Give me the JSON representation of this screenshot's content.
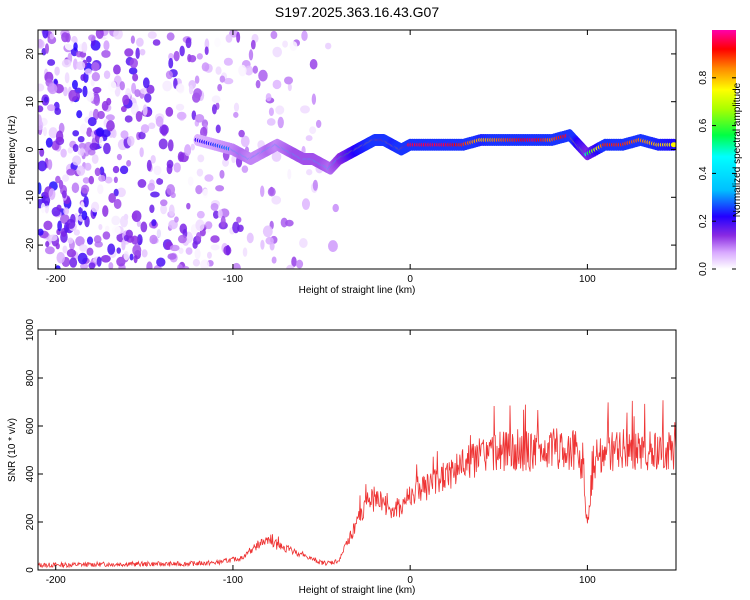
{
  "title": "S197.2025.363.16.43.G07",
  "chart_data": [
    {
      "type": "heatmap",
      "xlabel": "Height of straight line (km)",
      "ylabel": "Frequency (Hz)",
      "xlim": [
        -210,
        150
      ],
      "ylim": [
        -25,
        25
      ],
      "xticks": [
        -200,
        -100,
        0,
        100
      ],
      "yticks": [
        -20,
        -10,
        0,
        10,
        20
      ],
      "colorbar": {
        "label": "Normalized spectral amplitude",
        "range": [
          0,
          1
        ],
        "ticks": [
          0.0,
          0.2,
          0.4,
          0.6,
          0.8
        ]
      },
      "ridge": {
        "x": [
          -120,
          -110,
          -100,
          -95,
          -90,
          -85,
          -80,
          -75,
          -70,
          -65,
          -60,
          -55,
          -50,
          -45,
          -40,
          -35,
          -30,
          -25,
          -20,
          -15,
          -10,
          -5,
          0,
          10,
          20,
          30,
          40,
          50,
          60,
          70,
          80,
          90,
          95,
          100,
          110,
          120,
          130,
          140,
          150
        ],
        "freq": [
          2,
          1,
          0,
          -1,
          -2,
          -1,
          0,
          1,
          0,
          -1,
          -2,
          -2,
          -3,
          -4,
          -2,
          -1,
          0,
          1,
          2,
          2,
          1,
          0,
          1,
          1,
          1,
          1,
          2,
          2,
          2,
          2,
          2,
          3,
          1,
          -1,
          1,
          1,
          2,
          1,
          1
        ],
        "amplitude": [
          0.2,
          0.25,
          0.3,
          0.35,
          0.3,
          0.3,
          0.35,
          0.3,
          0.35,
          0.4,
          0.4,
          0.4,
          0.4,
          0.35,
          0.45,
          0.6,
          0.75,
          0.8,
          0.85,
          0.9,
          0.8,
          0.85,
          0.95,
          0.95,
          0.95,
          0.9,
          0.8,
          0.85,
          0.9,
          0.95,
          0.85,
          0.95,
          0.7,
          0.5,
          0.9,
          0.9,
          0.85,
          0.8,
          0.75
        ]
      },
      "noise_region": {
        "x_range": [
          -210,
          -40
        ],
        "freq_range": [
          -25,
          25
        ]
      }
    },
    {
      "type": "line",
      "xlabel": "Height of straight line (km)",
      "ylabel": "SNR (10 * v/v)",
      "xlim": [
        -210,
        150
      ],
      "ylim": [
        0,
        1000
      ],
      "xticks": [
        -200,
        -100,
        0,
        100
      ],
      "yticks": [
        0,
        200,
        400,
        600,
        800,
        1000
      ],
      "series": [
        {
          "name": "SNR",
          "color": "#ee3333",
          "x": [
            -210,
            -160,
            -130,
            -110,
            -95,
            -90,
            -85,
            -80,
            -75,
            -70,
            -65,
            -60,
            -55,
            -50,
            -45,
            -40,
            -35,
            -30,
            -25,
            -20,
            -15,
            -10,
            -5,
            0,
            5,
            10,
            15,
            20,
            25,
            30,
            40,
            50,
            60,
            70,
            80,
            85,
            90,
            95,
            98,
            100,
            102,
            105,
            110,
            120,
            130,
            140,
            150
          ],
          "values": [
            20,
            25,
            25,
            30,
            50,
            80,
            110,
            120,
            100,
            90,
            75,
            60,
            45,
            30,
            30,
            40,
            120,
            200,
            260,
            300,
            280,
            240,
            270,
            310,
            330,
            350,
            360,
            390,
            420,
            440,
            470,
            490,
            500,
            490,
            500,
            510,
            500,
            490,
            380,
            180,
            350,
            470,
            490,
            500,
            490,
            500,
            500
          ]
        }
      ]
    }
  ]
}
